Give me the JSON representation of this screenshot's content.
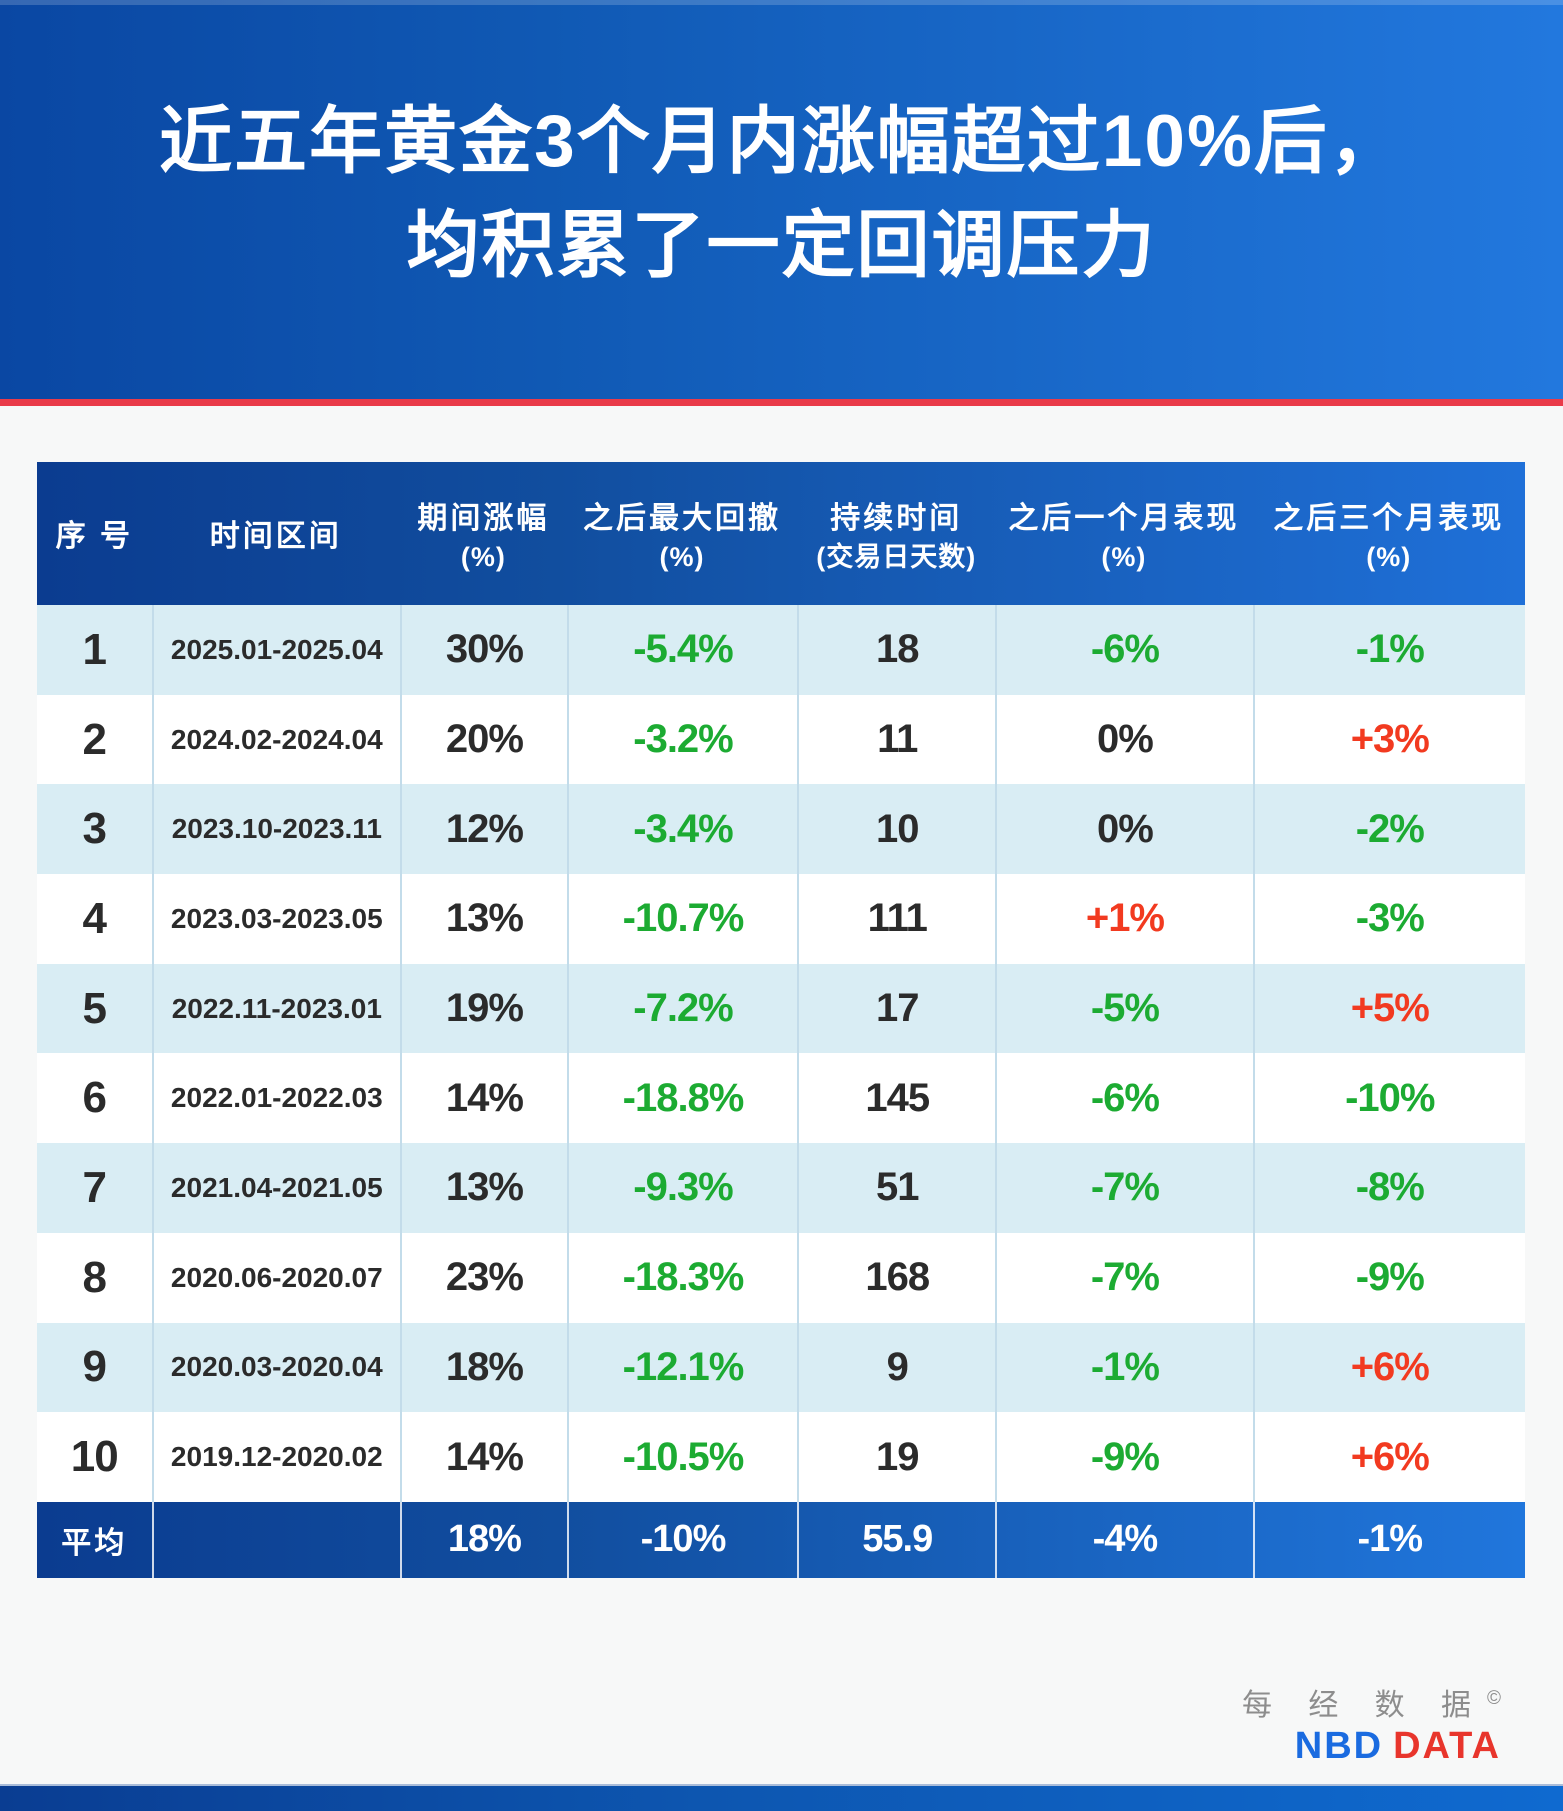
{
  "banner": {
    "title_line1": "近五年黄金3个月内涨幅超过10%后，",
    "title_line2": "均积累了一定回调压力"
  },
  "table": {
    "headers": [
      {
        "label": "序 号",
        "unit": ""
      },
      {
        "label": "时间区间",
        "unit": ""
      },
      {
        "label": "期间涨幅",
        "unit": "(%)"
      },
      {
        "label": "之后最大回撤",
        "unit": "(%)"
      },
      {
        "label": "持续时间",
        "unit": "(交易日天数)"
      },
      {
        "label": "之后一个月表现",
        "unit": "(%)"
      },
      {
        "label": "之后三个月表现",
        "unit": "(%)"
      }
    ],
    "rows": [
      [
        {
          "t": "1",
          "c": "dark"
        },
        {
          "t": "2025.01-2025.04",
          "c": "dark"
        },
        {
          "t": "30%",
          "c": "dark"
        },
        {
          "t": "-5.4%",
          "c": "green"
        },
        {
          "t": "18",
          "c": "dark"
        },
        {
          "t": "-6%",
          "c": "green"
        },
        {
          "t": "-1%",
          "c": "green"
        }
      ],
      [
        {
          "t": "2",
          "c": "dark"
        },
        {
          "t": "2024.02-2024.04",
          "c": "dark"
        },
        {
          "t": "20%",
          "c": "dark"
        },
        {
          "t": "-3.2%",
          "c": "green"
        },
        {
          "t": "11",
          "c": "dark"
        },
        {
          "t": "0%",
          "c": "dark"
        },
        {
          "t": "+3%",
          "c": "red"
        }
      ],
      [
        {
          "t": "3",
          "c": "dark"
        },
        {
          "t": "2023.10-2023.11",
          "c": "dark"
        },
        {
          "t": "12%",
          "c": "dark"
        },
        {
          "t": "-3.4%",
          "c": "green"
        },
        {
          "t": "10",
          "c": "dark"
        },
        {
          "t": "0%",
          "c": "dark"
        },
        {
          "t": "-2%",
          "c": "green"
        }
      ],
      [
        {
          "t": "4",
          "c": "dark"
        },
        {
          "t": "2023.03-2023.05",
          "c": "dark"
        },
        {
          "t": "13%",
          "c": "dark"
        },
        {
          "t": "-10.7%",
          "c": "green"
        },
        {
          "t": "111",
          "c": "dark"
        },
        {
          "t": "+1%",
          "c": "red"
        },
        {
          "t": "-3%",
          "c": "green"
        }
      ],
      [
        {
          "t": "5",
          "c": "dark"
        },
        {
          "t": "2022.11-2023.01",
          "c": "dark"
        },
        {
          "t": "19%",
          "c": "dark"
        },
        {
          "t": "-7.2%",
          "c": "green"
        },
        {
          "t": "17",
          "c": "dark"
        },
        {
          "t": "-5%",
          "c": "green"
        },
        {
          "t": "+5%",
          "c": "red"
        }
      ],
      [
        {
          "t": "6",
          "c": "dark"
        },
        {
          "t": "2022.01-2022.03",
          "c": "dark"
        },
        {
          "t": "14%",
          "c": "dark"
        },
        {
          "t": "-18.8%",
          "c": "green"
        },
        {
          "t": "145",
          "c": "dark"
        },
        {
          "t": "-6%",
          "c": "green"
        },
        {
          "t": "-10%",
          "c": "green"
        }
      ],
      [
        {
          "t": "7",
          "c": "dark"
        },
        {
          "t": "2021.04-2021.05",
          "c": "dark"
        },
        {
          "t": "13%",
          "c": "dark"
        },
        {
          "t": "-9.3%",
          "c": "green"
        },
        {
          "t": "51",
          "c": "dark"
        },
        {
          "t": "-7%",
          "c": "green"
        },
        {
          "t": "-8%",
          "c": "green"
        }
      ],
      [
        {
          "t": "8",
          "c": "dark"
        },
        {
          "t": "2020.06-2020.07",
          "c": "dark"
        },
        {
          "t": "23%",
          "c": "dark"
        },
        {
          "t": "-18.3%",
          "c": "green"
        },
        {
          "t": "168",
          "c": "dark"
        },
        {
          "t": "-7%",
          "c": "green"
        },
        {
          "t": "-9%",
          "c": "green"
        }
      ],
      [
        {
          "t": "9",
          "c": "dark"
        },
        {
          "t": "2020.03-2020.04",
          "c": "dark"
        },
        {
          "t": "18%",
          "c": "dark"
        },
        {
          "t": "-12.1%",
          "c": "green"
        },
        {
          "t": "9",
          "c": "dark"
        },
        {
          "t": "-1%",
          "c": "green"
        },
        {
          "t": "+6%",
          "c": "red"
        }
      ],
      [
        {
          "t": "10",
          "c": "dark"
        },
        {
          "t": "2019.12-2020.02",
          "c": "dark"
        },
        {
          "t": "14%",
          "c": "dark"
        },
        {
          "t": "-10.5%",
          "c": "green"
        },
        {
          "t": "19",
          "c": "dark"
        },
        {
          "t": "-9%",
          "c": "green"
        },
        {
          "t": "+6%",
          "c": "red"
        }
      ]
    ],
    "average_cells": [
      "平均",
      "",
      "18%",
      "-10%",
      "55.9",
      "-4%",
      "-1%"
    ]
  },
  "footer": {
    "logo_cn": "每 经 数 据",
    "logo_copyright": "©",
    "logo_en_1": "NBD",
    "logo_en_2": "DATA"
  },
  "colors": {
    "banner_blue_left": "#0a47a3",
    "banner_blue_right": "#2278de",
    "table_header_left": "#0b3c90",
    "table_header_right": "#1f70d8",
    "row_alt_blue": "#d9edf4",
    "divider_line": "#c3dcea",
    "red_separator": "#e93b49",
    "value_green": "#1cab32",
    "value_red": "#f23a20",
    "text_dark": "#2b2b2b",
    "logo_blue": "#1a6be0",
    "logo_red": "#e8352c",
    "logo_gray": "#8d8d8d",
    "page_background": "#f7f8f8"
  },
  "chart_data": {
    "type": "table",
    "title": "近五年黄金3个月内涨幅超过10%后，均积累了一定回调压力",
    "columns": [
      "序号",
      "时间区间",
      "期间涨幅(%)",
      "之后最大回撤(%)",
      "持续时间(交易日天数)",
      "之后一个月表现(%)",
      "之后三个月表现(%)"
    ],
    "rows": [
      [
        "1",
        "2025.01-2025.04",
        "30%",
        "-5.4%",
        "18",
        "-6%",
        "-1%"
      ],
      [
        "2",
        "2024.02-2024.04",
        "20%",
        "-3.2%",
        "11",
        "0%",
        "+3%"
      ],
      [
        "3",
        "2023.10-2023.11",
        "12%",
        "-3.4%",
        "10",
        "0%",
        "-2%"
      ],
      [
        "4",
        "2023.03-2023.05",
        "13%",
        "-10.7%",
        "111",
        "+1%",
        "-3%"
      ],
      [
        "5",
        "2022.11-2023.01",
        "19%",
        "-7.2%",
        "17",
        "-5%",
        "+5%"
      ],
      [
        "6",
        "2022.01-2022.03",
        "14%",
        "-18.8%",
        "145",
        "-6%",
        "-10%"
      ],
      [
        "7",
        "2021.04-2021.05",
        "13%",
        "-9.3%",
        "51",
        "-7%",
        "-8%"
      ],
      [
        "8",
        "2020.06-2020.07",
        "23%",
        "-18.3%",
        "168",
        "-7%",
        "-9%"
      ],
      [
        "9",
        "2020.03-2020.04",
        "18%",
        "-12.1%",
        "9",
        "-1%",
        "+6%"
      ],
      [
        "10",
        "2019.12-2020.02",
        "14%",
        "-10.5%",
        "19",
        "-9%",
        "+6%"
      ],
      [
        "平均",
        "",
        "18%",
        "-10%",
        "55.9",
        "-4%",
        "-1%"
      ]
    ]
  }
}
